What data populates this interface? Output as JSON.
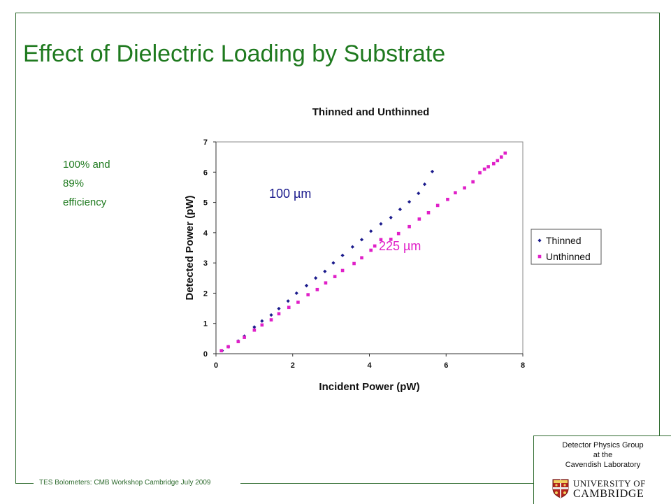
{
  "slide": {
    "title": "Effect of Dielectric Loading by Substrate",
    "side_note": [
      "100% and",
      "89%",
      "efficiency"
    ],
    "footer": "TES Bolometers: CMB Workshop Cambridge July 2009",
    "group": [
      "Detector Physics Group",
      "at  the",
      "Cavendish Laboratory"
    ],
    "logo": {
      "line1": "UNIVERSITY OF",
      "line2": "CAMBRIDGE",
      "icon": "cambridge-crest-icon"
    }
  },
  "chart_data": {
    "type": "scatter",
    "title": "Thinned and Unthinned",
    "xlabel": "Incident Power (pW)",
    "ylabel": "Detected Power (pW)",
    "xlim": [
      0,
      8
    ],
    "ylim": [
      0,
      7
    ],
    "xticks": [
      0,
      2,
      4,
      6,
      8
    ],
    "yticks": [
      0,
      1,
      2,
      3,
      4,
      5,
      6,
      7
    ],
    "grid": false,
    "legend_position": "right",
    "annotations": [
      {
        "text": "100 µm",
        "color": "#1a1a8c"
      },
      {
        "text": "225 µm",
        "color": "#e020c8"
      }
    ],
    "series": [
      {
        "name": "Thinned",
        "color": "#1a1a8c",
        "marker": "diamond",
        "x": [
          0.16,
          0.32,
          0.58,
          0.74,
          1.0,
          1.2,
          1.44,
          1.64,
          1.88,
          2.1,
          2.36,
          2.6,
          2.84,
          3.06,
          3.3,
          3.56,
          3.8,
          4.04,
          4.3,
          4.56,
          4.8,
          5.04,
          5.28,
          5.44,
          5.64
        ],
        "y": [
          0.1,
          0.23,
          0.42,
          0.58,
          0.88,
          1.08,
          1.28,
          1.49,
          1.74,
          2.0,
          2.25,
          2.5,
          2.72,
          3.0,
          3.25,
          3.53,
          3.77,
          4.05,
          4.29,
          4.5,
          4.77,
          5.02,
          5.3,
          5.6,
          6.02
        ]
      },
      {
        "name": "Unthinned",
        "color": "#e020c8",
        "marker": "square",
        "x": [
          0.14,
          0.32,
          0.58,
          0.74,
          1.0,
          1.2,
          1.44,
          1.64,
          1.9,
          2.14,
          2.4,
          2.64,
          2.86,
          3.1,
          3.3,
          3.6,
          3.8,
          4.04,
          4.14,
          4.3,
          4.56,
          4.76,
          5.04,
          5.3,
          5.54,
          5.78,
          6.04,
          6.24,
          6.48,
          6.7,
          6.88,
          7.0,
          7.1,
          7.24,
          7.34,
          7.44,
          7.54
        ],
        "y": [
          0.1,
          0.23,
          0.4,
          0.54,
          0.78,
          0.95,
          1.12,
          1.32,
          1.53,
          1.7,
          1.95,
          2.12,
          2.34,
          2.55,
          2.75,
          2.98,
          3.17,
          3.42,
          3.56,
          3.77,
          3.78,
          3.97,
          4.2,
          4.45,
          4.66,
          4.9,
          5.1,
          5.32,
          5.48,
          5.68,
          5.98,
          6.1,
          6.18,
          6.28,
          6.38,
          6.5,
          6.63
        ]
      }
    ]
  }
}
